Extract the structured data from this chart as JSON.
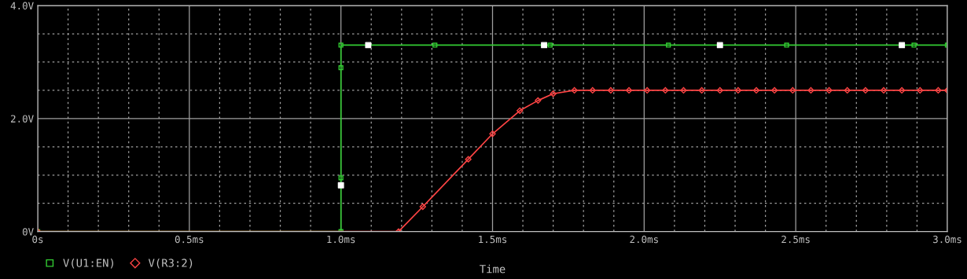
{
  "chart_data": {
    "type": "line",
    "xlabel": "Time",
    "xlim": [
      0,
      3.0
    ],
    "ylim": [
      0,
      4.0
    ],
    "xticks": [
      {
        "value": 0,
        "label": "0s"
      },
      {
        "value": 0.1,
        "label": null
      },
      {
        "value": 0.2,
        "label": null
      },
      {
        "value": 0.3,
        "label": null
      },
      {
        "value": 0.4,
        "label": null
      },
      {
        "value": 0.5,
        "label": "0.5ms"
      },
      {
        "value": 0.6,
        "label": null
      },
      {
        "value": 0.7,
        "label": null
      },
      {
        "value": 0.8,
        "label": null
      },
      {
        "value": 0.9,
        "label": null
      },
      {
        "value": 1.0,
        "label": "1.0ms"
      },
      {
        "value": 1.1,
        "label": null
      },
      {
        "value": 1.2,
        "label": null
      },
      {
        "value": 1.3,
        "label": null
      },
      {
        "value": 1.4,
        "label": null
      },
      {
        "value": 1.5,
        "label": "1.5ms"
      },
      {
        "value": 1.6,
        "label": null
      },
      {
        "value": 1.7,
        "label": null
      },
      {
        "value": 1.8,
        "label": null
      },
      {
        "value": 1.9,
        "label": null
      },
      {
        "value": 2.0,
        "label": "2.0ms"
      },
      {
        "value": 2.1,
        "label": null
      },
      {
        "value": 2.2,
        "label": null
      },
      {
        "value": 2.3,
        "label": null
      },
      {
        "value": 2.4,
        "label": null
      },
      {
        "value": 2.5,
        "label": "2.5ms"
      },
      {
        "value": 2.6,
        "label": null
      },
      {
        "value": 2.7,
        "label": null
      },
      {
        "value": 2.8,
        "label": null
      },
      {
        "value": 2.9,
        "label": null
      },
      {
        "value": 3.0,
        "label": "3.0ms"
      }
    ],
    "yticks": [
      {
        "value": 0,
        "label": "0V"
      },
      {
        "value": 0.5,
        "label": null
      },
      {
        "value": 1.0,
        "label": null
      },
      {
        "value": 1.5,
        "label": null
      },
      {
        "value": 2.0,
        "label": "2.0V"
      },
      {
        "value": 2.5,
        "label": null
      },
      {
        "value": 3.0,
        "label": null
      },
      {
        "value": 3.5,
        "label": null
      },
      {
        "value": 4.0,
        "label": "4.0V"
      }
    ],
    "grid": true,
    "legend": "bottom left",
    "series": [
      {
        "name": "V(U1:EN)",
        "color": "#33cc33",
        "marker": "square",
        "x": [
          0,
          1.0,
          1.0,
          1.0,
          1.0,
          1.31,
          1.69,
          2.08,
          2.47,
          2.89,
          3.0
        ],
        "values": [
          0,
          0,
          0.95,
          2.9,
          3.3,
          3.3,
          3.3,
          3.3,
          3.3,
          3.3,
          3.3
        ]
      },
      {
        "name": "V(R3:2)",
        "color": "#ff4444",
        "marker": "diamond",
        "x": [
          0,
          1.19,
          1.27,
          1.42,
          1.5,
          1.59,
          1.65,
          1.7,
          1.77,
          1.83,
          1.89,
          1.95,
          2.01,
          2.07,
          2.13,
          2.19,
          2.25,
          2.31,
          2.37,
          2.43,
          2.49,
          2.55,
          2.61,
          2.67,
          2.73,
          2.79,
          2.85,
          2.91,
          2.97,
          3.0
        ],
        "values": [
          0,
          0,
          0.44,
          1.28,
          1.73,
          2.14,
          2.32,
          2.44,
          2.5,
          2.5,
          2.5,
          2.5,
          2.5,
          2.5,
          2.5,
          2.5,
          2.5,
          2.5,
          2.5,
          2.5,
          2.5,
          2.5,
          2.5,
          2.5,
          2.5,
          2.5,
          2.5,
          2.5,
          2.5,
          2.5
        ]
      },
      {
        "type": "scatter",
        "color": "#ffffff",
        "marker": "square",
        "x": [
          1.0,
          1.09,
          1.67,
          2.25,
          2.85
        ],
        "values": [
          0.82,
          3.3,
          3.3,
          3.3,
          3.3
        ]
      }
    ]
  }
}
